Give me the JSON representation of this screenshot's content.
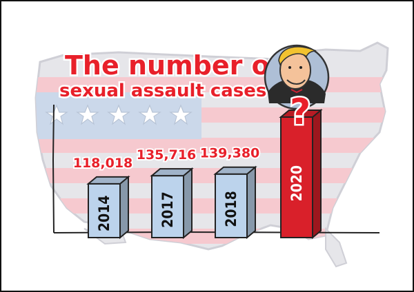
{
  "title": {
    "line1": "The number of",
    "line2": "sexual assault cases"
  },
  "question_mark": "?",
  "chart_data": {
    "type": "bar",
    "categories": [
      "2014",
      "2017",
      "2018",
      "2020"
    ],
    "values": [
      118018,
      135716,
      139380,
      null
    ],
    "value_labels": [
      "118,018",
      "135,716",
      "139,380",
      ""
    ],
    "title": "The number of sexual assault cases",
    "xlabel": "",
    "ylabel": "",
    "ylim": [
      0,
      200000
    ],
    "grid": false,
    "legend": "none",
    "bar_colors": [
      "#bcd3ec",
      "#bcd3ec",
      "#bcd3ec",
      "#d9202a"
    ],
    "year_label_colors": [
      "#111111",
      "#111111",
      "#111111",
      "#ffffff"
    ]
  },
  "colors": {
    "title_red": "#e8202a",
    "bar_blue": "#bcd3ec",
    "bar_red": "#d9202a",
    "flag_stripe": "#f6c9cf",
    "flag_canton": "#cbd8ea",
    "map_gray": "#e6e6ea"
  },
  "icons": {
    "background": "us-map-flag-icon",
    "character": "caricature-portrait-icon",
    "stars": "star-icon"
  }
}
